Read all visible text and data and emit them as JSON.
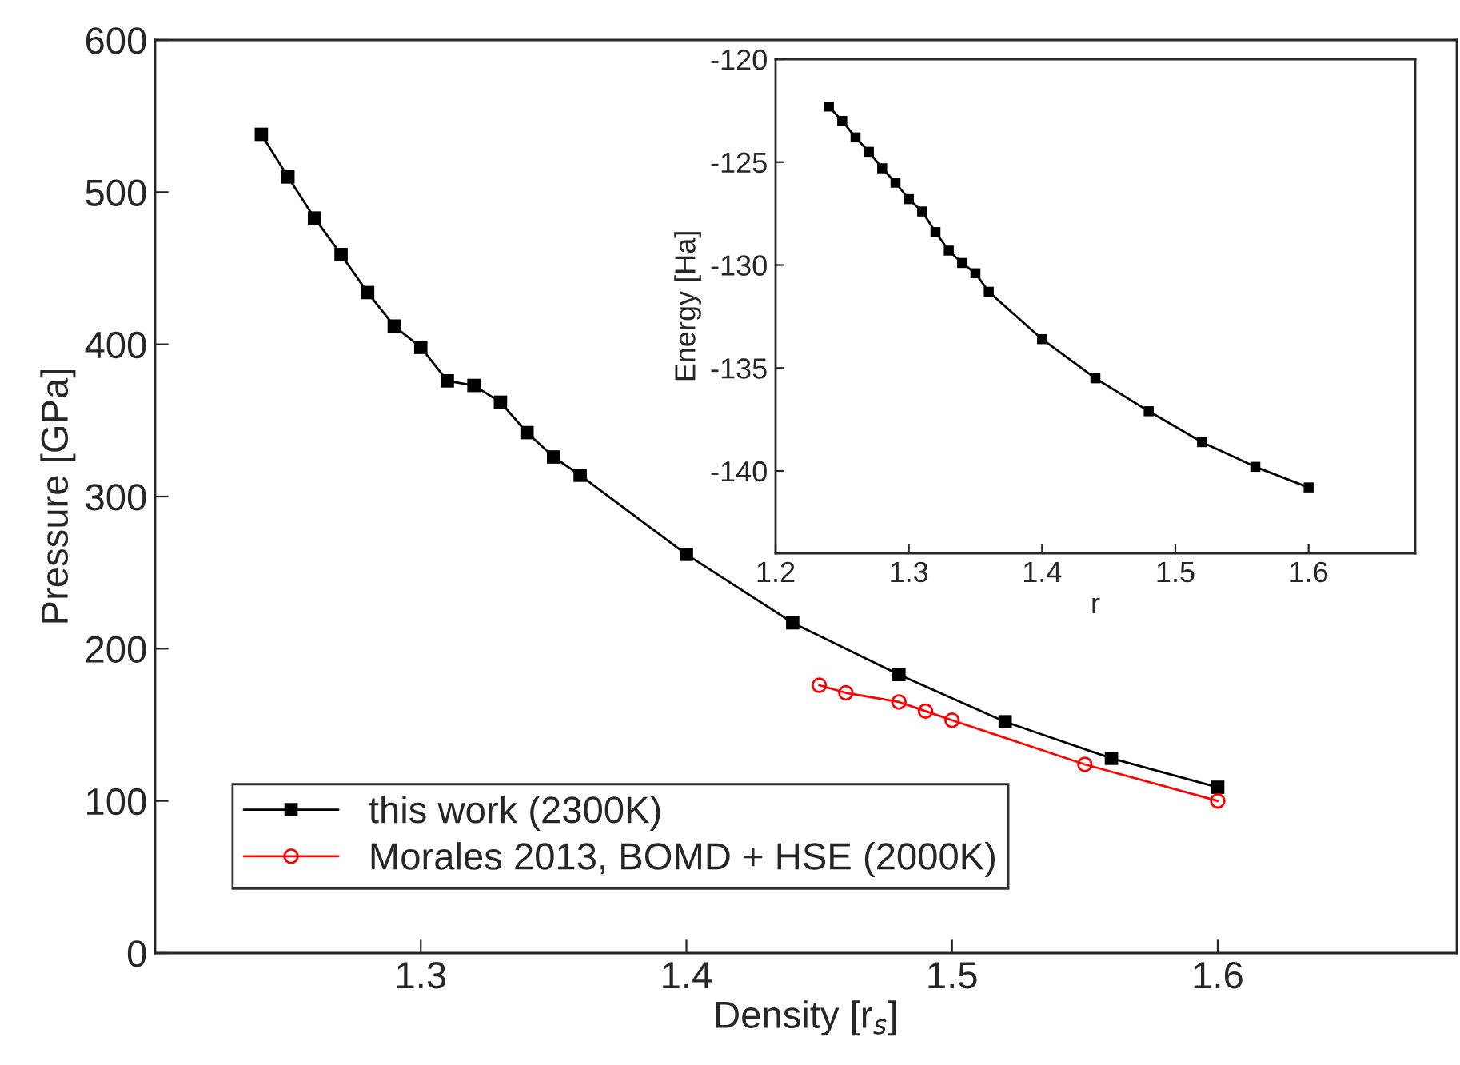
{
  "chart_data": [
    {
      "type": "line",
      "xlabel": "Density [r$_{s}$]",
      "ylabel": "Pressure [GPa]",
      "xlim": [
        1.2,
        1.69
      ],
      "xticks": [
        1.3,
        1.4,
        1.5,
        1.6
      ],
      "ylim": [
        0,
        600
      ],
      "yticks": [
        0,
        100,
        200,
        300,
        400,
        500,
        600
      ],
      "legend": "bottom left",
      "grid": false,
      "series": [
        {
          "name": "this work (2300K)",
          "color": "#000000",
          "marker": "square",
          "x": [
            1.24,
            1.25,
            1.26,
            1.27,
            1.28,
            1.29,
            1.3,
            1.31,
            1.32,
            1.33,
            1.34,
            1.35,
            1.36,
            1.4,
            1.44,
            1.48,
            1.52,
            1.56,
            1.6
          ],
          "values": [
            538,
            510,
            483,
            459,
            434,
            412,
            398,
            376,
            373,
            362,
            342,
            326,
            314,
            262,
            217,
            183,
            152,
            128,
            109
          ]
        },
        {
          "name": "Morales 2013, BOMD + HSE (2000K)",
          "color": "#ff0000",
          "marker": "circle",
          "x": [
            1.45,
            1.46,
            1.48,
            1.49,
            1.5,
            1.55,
            1.6
          ],
          "values": [
            176,
            171,
            165,
            159,
            153,
            124,
            100
          ]
        }
      ]
    },
    {
      "type": "line",
      "xlabel": "r",
      "ylabel": "Energy [Ha]",
      "xlim": [
        1.2,
        1.68
      ],
      "xticks": [
        1.2,
        1.3,
        1.4,
        1.5,
        1.6
      ],
      "ylim": [
        -144,
        -120
      ],
      "yticks": [
        -140,
        -135,
        -130,
        -125,
        -120
      ],
      "legend": false,
      "grid": false,
      "series": [
        {
          "color": "#000000",
          "marker": "square",
          "x": [
            1.24,
            1.25,
            1.26,
            1.27,
            1.28,
            1.29,
            1.3,
            1.31,
            1.32,
            1.33,
            1.34,
            1.35,
            1.36,
            1.4,
            1.44,
            1.48,
            1.52,
            1.56,
            1.6
          ],
          "values": [
            -122.3,
            -123.0,
            -123.8,
            -124.5,
            -125.3,
            -126.0,
            -126.8,
            -127.4,
            -128.4,
            -129.3,
            -129.9,
            -130.4,
            -131.3,
            -133.6,
            -135.5,
            -137.1,
            -138.6,
            -139.8,
            -140.8
          ]
        }
      ]
    }
  ]
}
